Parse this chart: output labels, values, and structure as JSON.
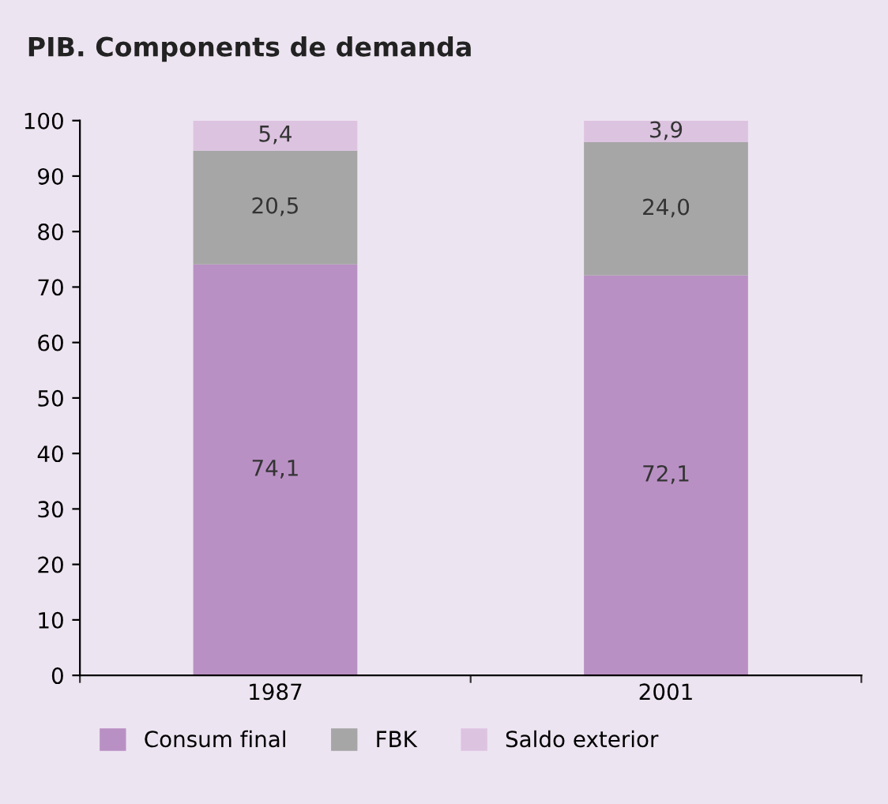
{
  "chart_data": {
    "type": "bar",
    "title": "PIB. Components de demanda",
    "stacked": true,
    "categories": [
      "1987",
      "2001"
    ],
    "series": [
      {
        "name": "Consum final",
        "color": "#b990c4",
        "values": [
          74.1,
          72.1
        ],
        "value_labels": [
          "74,1",
          "72,1"
        ]
      },
      {
        "name": "FBK",
        "color": "#a6a6a6",
        "values": [
          20.5,
          24.0
        ],
        "value_labels": [
          "20,5",
          "24,0"
        ]
      },
      {
        "name": "Saldo exterior",
        "color": "#dcc3e0",
        "values": [
          5.4,
          3.9
        ],
        "value_labels": [
          "5,4",
          "3,9"
        ]
      }
    ],
    "ylim": [
      0,
      100
    ],
    "yticks": [
      0,
      10,
      20,
      30,
      40,
      50,
      60,
      70,
      80,
      90,
      100
    ],
    "grid": false,
    "legend": "bottom"
  }
}
